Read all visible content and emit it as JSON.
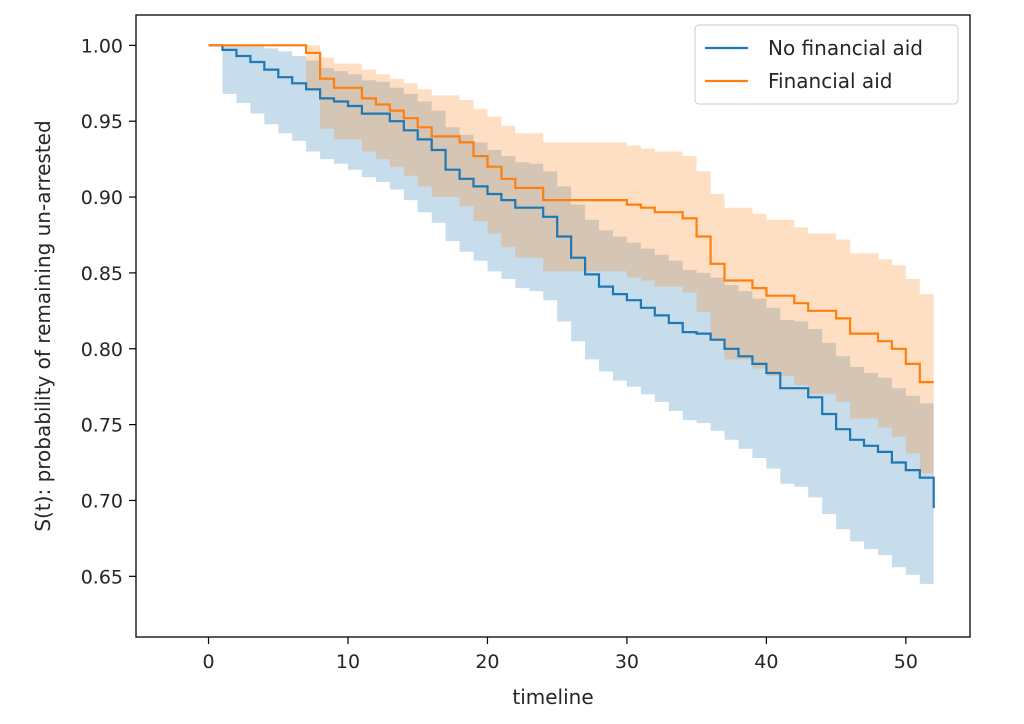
{
  "chart_data": {
    "type": "line",
    "style": "step",
    "xlabel": "timeline",
    "ylabel": "S(t): probability of remaining un-arrested",
    "xlim": [
      -5.2,
      54.6
    ],
    "ylim": [
      0.61,
      1.02
    ],
    "xticks": [
      0,
      10,
      20,
      30,
      40,
      50
    ],
    "yticks": [
      1.0,
      0.95,
      0.9,
      0.85,
      0.8,
      0.75,
      0.7,
      0.65
    ],
    "ytick_labels": [
      "1.00",
      "0.95",
      "0.90",
      "0.85",
      "0.80",
      "0.75",
      "0.70",
      "0.65"
    ],
    "legend_position": "top-right",
    "grid": false,
    "series": [
      {
        "name": "No financial aid",
        "color": "#1f77b4",
        "x": [
          0,
          1,
          2,
          3,
          4,
          5,
          6,
          7,
          8,
          9,
          10,
          11,
          12,
          13,
          14,
          15,
          16,
          17,
          18,
          19,
          20,
          21,
          22,
          23,
          24,
          25,
          26,
          27,
          28,
          29,
          30,
          31,
          32,
          33,
          34,
          35,
          36,
          37,
          38,
          39,
          40,
          41,
          42,
          43,
          44,
          45,
          46,
          47,
          48,
          49,
          50,
          51,
          52
        ],
        "y": [
          1.0,
          0.997,
          0.993,
          0.989,
          0.984,
          0.979,
          0.975,
          0.971,
          0.965,
          0.963,
          0.96,
          0.955,
          0.955,
          0.95,
          0.944,
          0.938,
          0.931,
          0.918,
          0.912,
          0.907,
          0.902,
          0.898,
          0.893,
          0.893,
          0.887,
          0.874,
          0.86,
          0.849,
          0.841,
          0.836,
          0.832,
          0.827,
          0.822,
          0.817,
          0.811,
          0.81,
          0.806,
          0.8,
          0.795,
          0.79,
          0.784,
          0.774,
          0.774,
          0.768,
          0.757,
          0.747,
          0.74,
          0.736,
          0.732,
          0.725,
          0.72,
          0.715,
          0.695
        ],
        "ci_lower": [
          1.0,
          0.968,
          0.962,
          0.955,
          0.948,
          0.942,
          0.937,
          0.93,
          0.925,
          0.922,
          0.918,
          0.913,
          0.91,
          0.905,
          0.898,
          0.89,
          0.883,
          0.871,
          0.864,
          0.858,
          0.851,
          0.846,
          0.84,
          0.838,
          0.832,
          0.818,
          0.805,
          0.793,
          0.785,
          0.779,
          0.775,
          0.77,
          0.765,
          0.759,
          0.753,
          0.751,
          0.746,
          0.74,
          0.734,
          0.728,
          0.721,
          0.711,
          0.709,
          0.702,
          0.691,
          0.681,
          0.673,
          0.668,
          0.664,
          0.656,
          0.651,
          0.645,
          0.627
        ],
        "ci_upper": [
          1.0,
          1.0,
          1.0,
          1.0,
          0.998,
          0.996,
          0.993,
          0.99,
          0.985,
          0.983,
          0.981,
          0.977,
          0.976,
          0.972,
          0.968,
          0.963,
          0.957,
          0.946,
          0.941,
          0.936,
          0.931,
          0.927,
          0.923,
          0.922,
          0.917,
          0.907,
          0.895,
          0.885,
          0.878,
          0.874,
          0.87,
          0.866,
          0.862,
          0.858,
          0.852,
          0.85,
          0.847,
          0.842,
          0.838,
          0.833,
          0.827,
          0.819,
          0.818,
          0.813,
          0.804,
          0.795,
          0.788,
          0.784,
          0.781,
          0.774,
          0.769,
          0.764,
          0.745
        ]
      },
      {
        "name": "Financial aid",
        "color": "#ff7f0e",
        "x": [
          0,
          1,
          2,
          3,
          4,
          5,
          6,
          7,
          8,
          9,
          10,
          11,
          12,
          13,
          14,
          15,
          16,
          17,
          18,
          19,
          20,
          21,
          22,
          23,
          24,
          25,
          26,
          27,
          28,
          29,
          30,
          31,
          32,
          33,
          34,
          35,
          36,
          37,
          38,
          39,
          40,
          41,
          42,
          43,
          44,
          45,
          46,
          47,
          48,
          49,
          50,
          51,
          52
        ],
        "y": [
          1.0,
          1.0,
          1.0,
          1.0,
          1.0,
          1.0,
          1.0,
          0.995,
          0.978,
          0.972,
          0.972,
          0.965,
          0.961,
          0.957,
          0.952,
          0.946,
          0.94,
          0.94,
          0.936,
          0.927,
          0.92,
          0.912,
          0.906,
          0.906,
          0.898,
          0.898,
          0.898,
          0.898,
          0.898,
          0.898,
          0.895,
          0.893,
          0.89,
          0.89,
          0.886,
          0.874,
          0.856,
          0.845,
          0.845,
          0.84,
          0.835,
          0.835,
          0.83,
          0.825,
          0.825,
          0.82,
          0.81,
          0.81,
          0.805,
          0.8,
          0.79,
          0.778,
          0.778
        ],
        "ci_lower": [
          1.0,
          1.0,
          1.0,
          1.0,
          1.0,
          1.0,
          1.0,
          0.97,
          0.945,
          0.938,
          0.938,
          0.93,
          0.925,
          0.92,
          0.914,
          0.907,
          0.9,
          0.9,
          0.894,
          0.884,
          0.876,
          0.867,
          0.86,
          0.86,
          0.851,
          0.851,
          0.851,
          0.851,
          0.851,
          0.851,
          0.847,
          0.845,
          0.841,
          0.841,
          0.837,
          0.824,
          0.805,
          0.793,
          0.793,
          0.787,
          0.782,
          0.782,
          0.776,
          0.77,
          0.77,
          0.765,
          0.754,
          0.754,
          0.748,
          0.742,
          0.731,
          0.718,
          0.718
        ],
        "ci_upper": [
          1.0,
          1.0,
          1.0,
          1.0,
          1.0,
          1.0,
          1.0,
          1.0,
          0.992,
          0.988,
          0.988,
          0.984,
          0.981,
          0.978,
          0.975,
          0.971,
          0.967,
          0.967,
          0.964,
          0.958,
          0.953,
          0.947,
          0.942,
          0.942,
          0.936,
          0.936,
          0.936,
          0.936,
          0.936,
          0.936,
          0.934,
          0.932,
          0.93,
          0.93,
          0.927,
          0.917,
          0.902,
          0.893,
          0.893,
          0.889,
          0.885,
          0.885,
          0.88,
          0.876,
          0.876,
          0.872,
          0.863,
          0.863,
          0.859,
          0.855,
          0.846,
          0.836,
          0.836
        ]
      }
    ]
  }
}
